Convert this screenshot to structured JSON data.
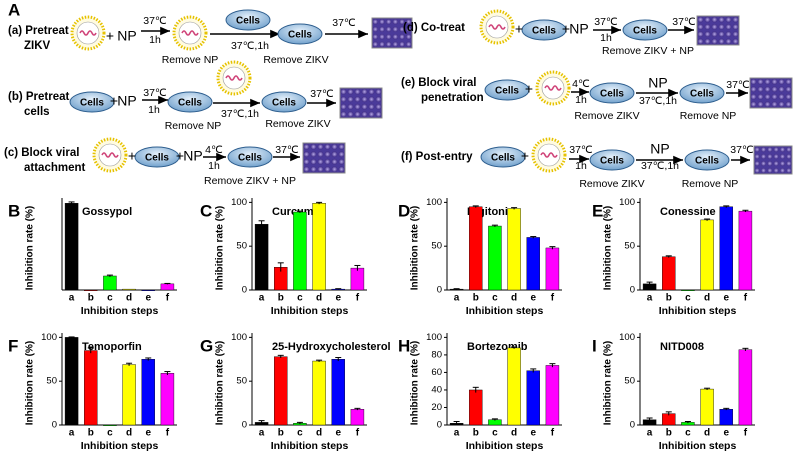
{
  "diagram": {
    "label": "A",
    "cells": "Cells",
    "plus": "+",
    "rows": [
      {
        "label": [
          "(a) Pretreat",
          "ZIKV"
        ],
        "texts": [
          "NP",
          "37℃",
          "1h",
          "37℃,1h",
          "37℃",
          "Remove NP",
          "Remove ZIKV"
        ]
      },
      {
        "label": [
          "(b) Pretreat",
          "cells"
        ],
        "texts": [
          "NP",
          "37℃",
          "1h",
          "Remove NP",
          "37℃,1h",
          "Remove ZIKV",
          "37℃"
        ]
      },
      {
        "label": [
          "(c) Block viral",
          "attachment"
        ],
        "texts": [
          "NP",
          "4℃",
          "1h",
          "37℃",
          "Remove ZIKV + NP"
        ]
      },
      {
        "label": [
          "(d) Co-treat"
        ],
        "texts": [
          "NP",
          "37℃",
          "1h",
          "37℃",
          "Remove ZIKV + NP"
        ]
      },
      {
        "label": [
          "(e) Block viral",
          "penetration"
        ],
        "texts": [
          "4℃",
          "1h",
          "NP",
          "37℃,1h",
          "37℃",
          "Remove ZIKV",
          "Remove NP"
        ]
      },
      {
        "label": [
          "(f) Post-entry"
        ],
        "texts": [
          "37℃",
          "1h",
          "NP",
          "37℃,1h",
          "37℃",
          "Remove ZIKV",
          "Remove NP"
        ]
      }
    ]
  },
  "chart_data": [
    {
      "type": "bar",
      "label": "B",
      "title": "Gossypol",
      "ylabel": "Inhibition rate (%)",
      "xlabel": "Inhibition steps",
      "categories": [
        "a",
        "b",
        "c",
        "d",
        "e",
        "f"
      ],
      "values": [
        99,
        0,
        16,
        1,
        0,
        7
      ],
      "errors": [
        1.5,
        0,
        1,
        0,
        0,
        0.5
      ],
      "colors": [
        "#000000",
        "#ff0000",
        "#00ff00",
        "#ffff00",
        "#0000ff",
        "#ff00ff"
      ],
      "ylim": [
        0,
        105
      ],
      "yticks": []
    },
    {
      "type": "bar",
      "label": "C",
      "title": "Curcumin",
      "ylabel": "Inhibition rate (%)",
      "xlabel": "Inhibition steps",
      "categories": [
        "a",
        "b",
        "c",
        "d",
        "e",
        "f"
      ],
      "values": [
        75,
        26,
        89,
        99,
        1,
        25
      ],
      "errors": [
        4,
        5,
        1,
        1,
        0.5,
        3
      ],
      "colors": [
        "#000000",
        "#ff0000",
        "#00ff00",
        "#ffff00",
        "#0000ff",
        "#ff00ff"
      ],
      "ylim": [
        0,
        105
      ],
      "yticks": [
        0,
        50,
        100
      ]
    },
    {
      "type": "bar",
      "label": "D",
      "title": "Digitonin",
      "ylabel": "Inhibition rate (%)",
      "xlabel": "Inhibition steps",
      "categories": [
        "a",
        "b",
        "c",
        "d",
        "e",
        "f"
      ],
      "values": [
        1,
        95,
        73,
        93,
        60,
        48
      ],
      "errors": [
        0.5,
        1,
        1,
        1,
        1,
        1.5
      ],
      "colors": [
        "#000000",
        "#ff0000",
        "#00ff00",
        "#ffff00",
        "#0000ff",
        "#ff00ff"
      ],
      "ylim": [
        0,
        105
      ],
      "yticks": [
        0,
        50,
        100
      ]
    },
    {
      "type": "bar",
      "label": "E",
      "title": "Conessine",
      "ylabel": "Inhibition rate (%)",
      "xlabel": "Inhibition steps",
      "categories": [
        "a",
        "b",
        "c",
        "d",
        "e",
        "f"
      ],
      "values": [
        7,
        38,
        0,
        80,
        95,
        90
      ],
      "errors": [
        2,
        1,
        0,
        1,
        1,
        1
      ],
      "colors": [
        "#000000",
        "#ff0000",
        "#00ff00",
        "#ffff00",
        "#0000ff",
        "#ff00ff"
      ],
      "ylim": [
        0,
        105
      ],
      "yticks": [
        0,
        50,
        100
      ]
    },
    {
      "type": "bar",
      "label": "F",
      "title": "Temoporfin",
      "ylabel": "Inhibition rate (%)",
      "xlabel": "Inhibition steps",
      "categories": [
        "a",
        "b",
        "c",
        "d",
        "e",
        "f"
      ],
      "values": [
        100,
        85,
        0,
        69,
        75,
        59
      ],
      "errors": [
        0.5,
        3,
        0,
        1.5,
        1.5,
        2
      ],
      "colors": [
        "#000000",
        "#ff0000",
        "#00ff00",
        "#ffff00",
        "#0000ff",
        "#ff00ff"
      ],
      "ylim": [
        0,
        105
      ],
      "yticks": [
        0,
        50,
        100
      ]
    },
    {
      "type": "bar",
      "label": "G",
      "title": "25-Hydroxycholesterol",
      "ylabel": "Inhibition rate (%)",
      "xlabel": "Inhibition steps",
      "categories": [
        "a",
        "b",
        "c",
        "d",
        "e",
        "f"
      ],
      "values": [
        3,
        78,
        2,
        73,
        75,
        18
      ],
      "errors": [
        2,
        1.5,
        1,
        1,
        2,
        1
      ],
      "colors": [
        "#000000",
        "#ff0000",
        "#00ff00",
        "#ffff00",
        "#0000ff",
        "#ff00ff"
      ],
      "ylim": [
        0,
        105
      ],
      "yticks": [
        0,
        50,
        100
      ]
    },
    {
      "type": "bar",
      "label": "H",
      "title": "Bortezomib",
      "ylabel": "Inhibition rate (%)",
      "xlabel": "Inhibition steps",
      "categories": [
        "a",
        "b",
        "c",
        "d",
        "e",
        "f"
      ],
      "values": [
        2,
        40,
        6,
        88,
        62,
        68
      ],
      "errors": [
        2,
        3,
        1,
        1,
        2,
        2
      ],
      "colors": [
        "#000000",
        "#ff0000",
        "#00ff00",
        "#ffff00",
        "#0000ff",
        "#ff00ff"
      ],
      "ylim": [
        0,
        105
      ],
      "yticks": [
        0,
        20,
        40,
        60,
        80,
        100
      ]
    },
    {
      "type": "bar",
      "label": "I",
      "title": "NITD008",
      "ylabel": "Inhibition rate (%)",
      "xlabel": "Inhibition steps",
      "categories": [
        "a",
        "b",
        "c",
        "d",
        "e",
        "f"
      ],
      "values": [
        6,
        13,
        3,
        41,
        18,
        86
      ],
      "errors": [
        2,
        2,
        1,
        1,
        1,
        1.5
      ],
      "colors": [
        "#000000",
        "#ff0000",
        "#00ff00",
        "#ffff00",
        "#0000ff",
        "#ff00ff"
      ],
      "ylim": [
        0,
        105
      ],
      "yticks": [
        0,
        50,
        100
      ]
    }
  ]
}
